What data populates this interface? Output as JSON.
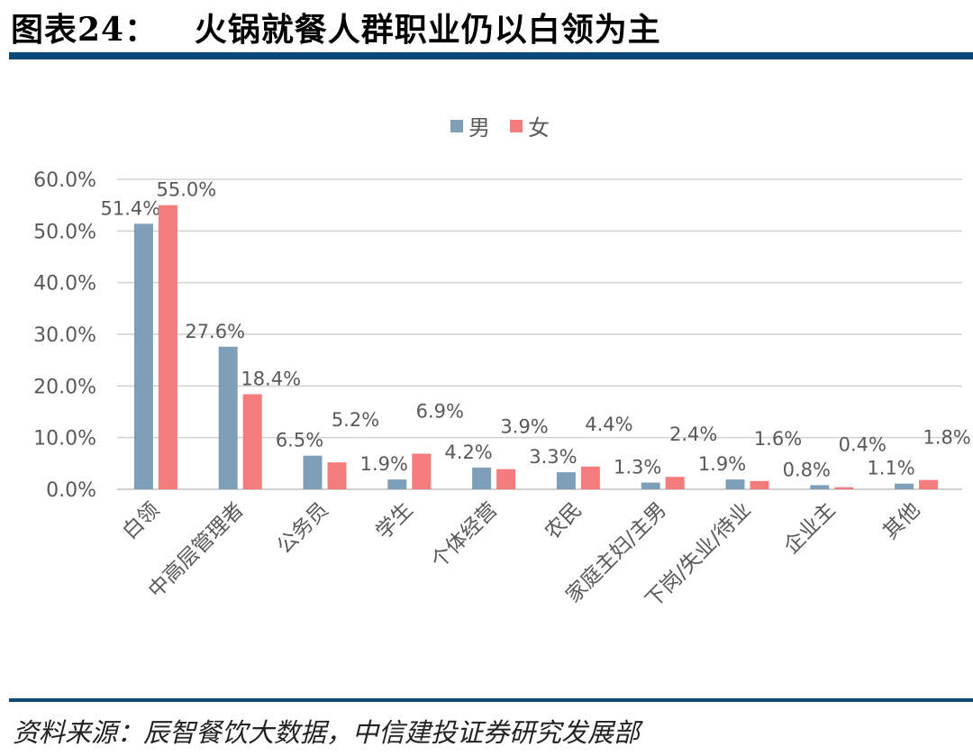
{
  "title": "图表24：   火锅就餐人群职业仍以白领为主",
  "footer": "资料来源：辰智餐饮大数据，中信建投证券研究发展部",
  "chart_data": {
    "type": "bar",
    "categories": [
      "白领",
      "中高层管理者",
      "公务员",
      "学生",
      "个体经营",
      "农民",
      "家庭主妇/主男",
      "下岗/失业/待业",
      "企业主",
      "其他"
    ],
    "series": [
      {
        "name": "男",
        "color": "#7f9fb8",
        "values": [
          51.4,
          27.6,
          6.5,
          1.9,
          4.2,
          3.3,
          1.3,
          1.9,
          0.8,
          1.1
        ],
        "labels": [
          "51.4%",
          "27.6%",
          "6.5%",
          "1.9%",
          "4.2%",
          "3.3%",
          "1.3%",
          "1.9%",
          "0.8%",
          "1.1%"
        ]
      },
      {
        "name": "女",
        "color": "#f47c7c",
        "values": [
          55.0,
          18.4,
          5.2,
          6.9,
          3.9,
          4.4,
          2.4,
          1.6,
          0.4,
          1.8
        ],
        "labels": [
          "55.0%",
          "18.4%",
          "5.2%",
          "6.9%",
          "3.9%",
          "4.4%",
          "2.4%",
          "1.6%",
          "0.4%",
          "1.8%"
        ]
      }
    ],
    "yticks": [
      "0.0%",
      "10.0%",
      "20.0%",
      "30.0%",
      "40.0%",
      "50.0%",
      "60.0%"
    ],
    "ylim": [
      0,
      60
    ],
    "grid": true,
    "legend": "top-center",
    "xlabel": "",
    "ylabel": ""
  }
}
